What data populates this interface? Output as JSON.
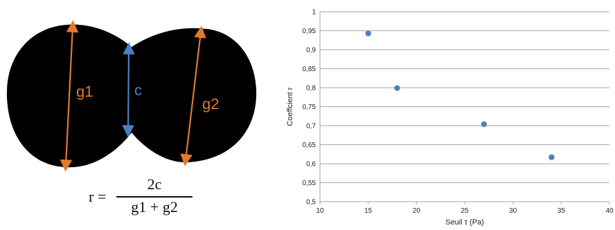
{
  "diagram": {
    "labels": {
      "g1": "g1",
      "c": "c",
      "g2": "g2"
    },
    "colors": {
      "blob": "#000000",
      "g_arrow": "#e07a2f",
      "c_arrow": "#4a7fc1"
    }
  },
  "formula": {
    "lhs": "r =",
    "numerator": "2c",
    "denominator": "g1 + g2"
  },
  "chart_data": {
    "type": "scatter",
    "xlabel": "Seuil τ (Pa)",
    "ylabel": "Coeffcient r",
    "xlim": [
      10,
      40
    ],
    "ylim": [
      0.5,
      1
    ],
    "x_ticks": [
      "10",
      "15",
      "20",
      "25",
      "30",
      "35",
      "40"
    ],
    "y_ticks": [
      "0,5",
      "0,55",
      "0,6",
      "0,65",
      "0,7",
      "0,75",
      "0,8",
      "0,85",
      "0,9",
      "0,95",
      "1"
    ],
    "x_tick_values": [
      10,
      15,
      20,
      25,
      30,
      35,
      40
    ],
    "y_tick_values": [
      0.5,
      0.55,
      0.6,
      0.65,
      0.7,
      0.75,
      0.8,
      0.85,
      0.9,
      0.95,
      1
    ],
    "points": [
      {
        "x": 15,
        "y": 0.943
      },
      {
        "x": 18,
        "y": 0.799
      },
      {
        "x": 27,
        "y": 0.704
      },
      {
        "x": 34,
        "y": 0.617
      }
    ],
    "grid": "horizontal",
    "marker_color": "#4f81bd",
    "gridline_color": "#a6a6a6"
  }
}
